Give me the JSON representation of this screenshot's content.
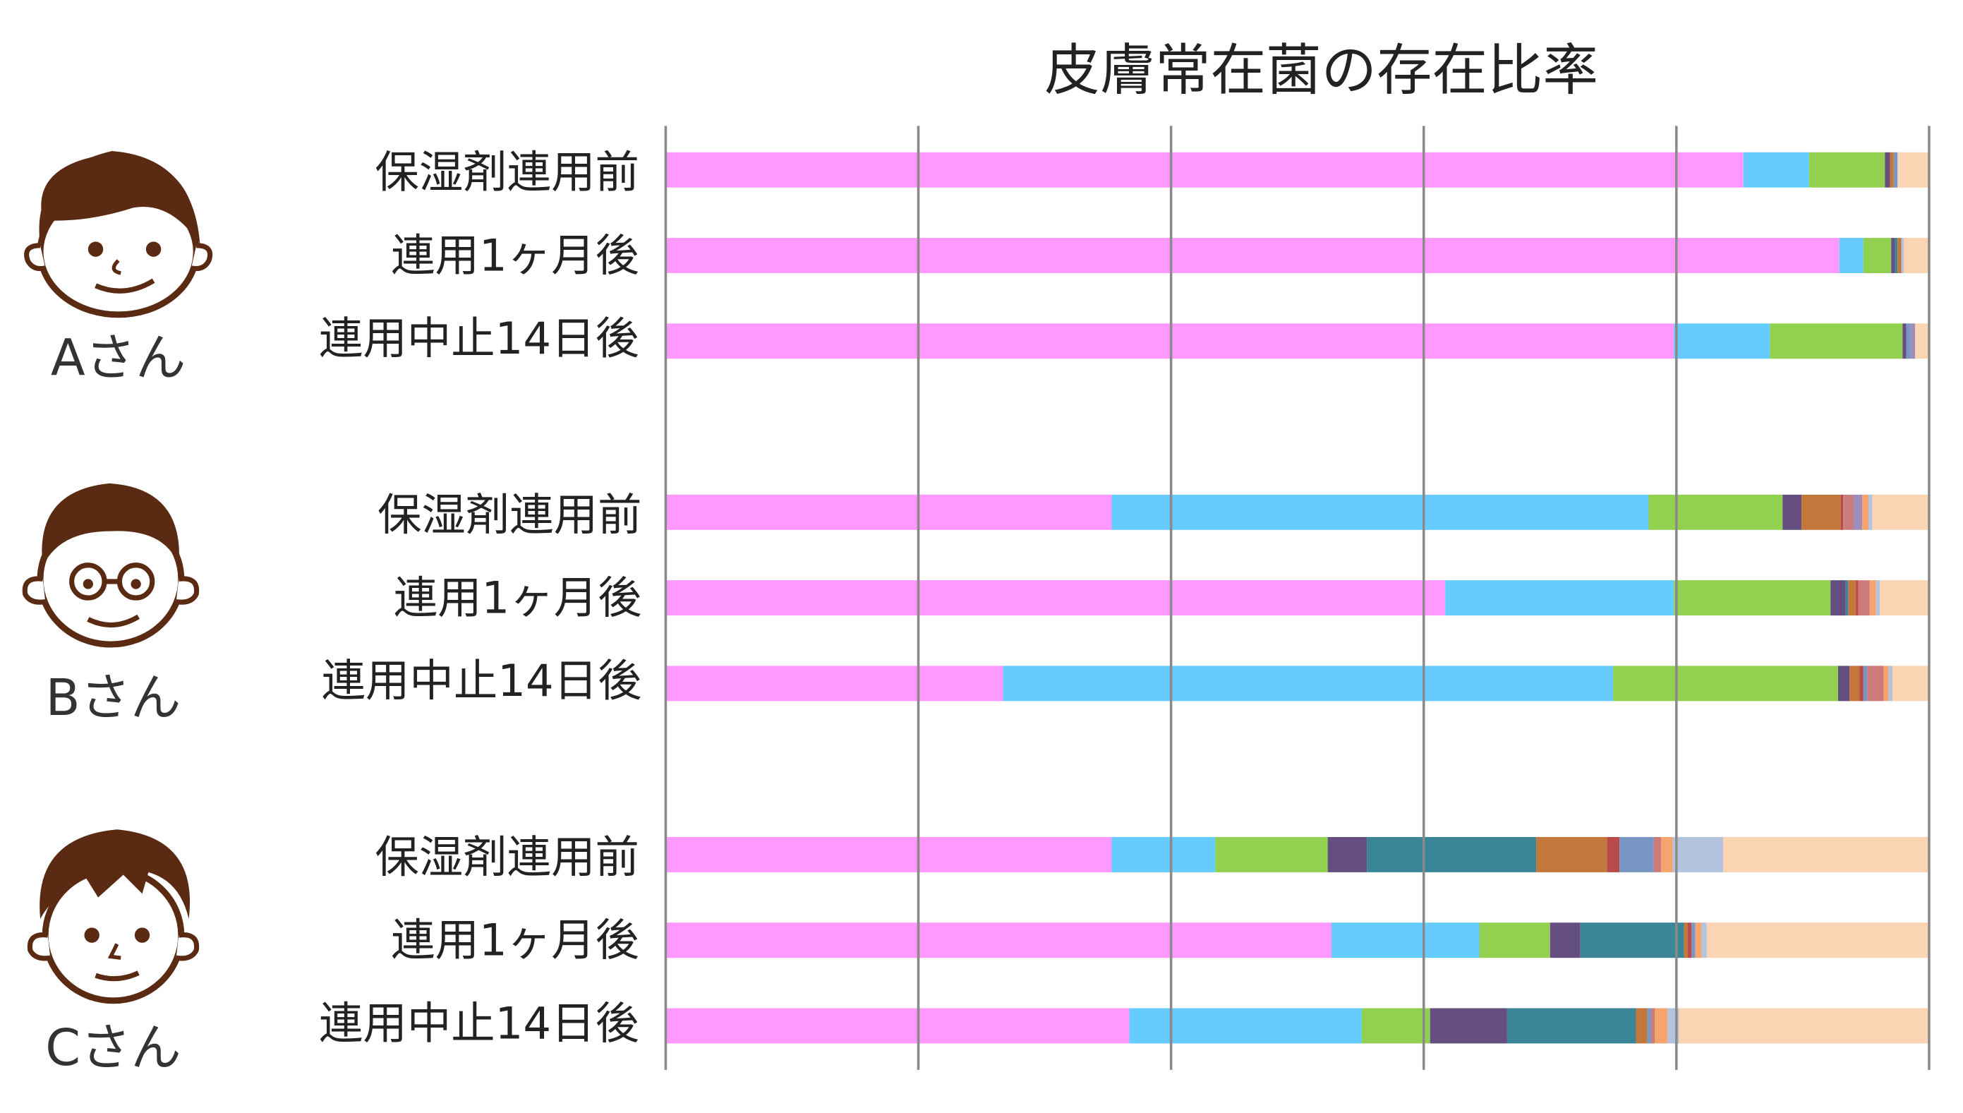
{
  "chart_data": {
    "type": "bar",
    "orientation": "horizontal",
    "stacked": true,
    "title": "皮膚常在菌の存在比率",
    "xlabel": "",
    "ylabel": "",
    "xlim": [
      0,
      100
    ],
    "unit": "%",
    "grid": true,
    "xticks": [
      0,
      20,
      40,
      60,
      80,
      100
    ],
    "legend": "none",
    "colors": [
      "#FF99FF",
      "#66CCFF",
      "#92D050",
      "#654E80",
      "#3A8598",
      "#C4773A",
      "#B84A4A",
      "#7896C4",
      "#CC7B7B",
      "#9E8CBB",
      "#F6A46E",
      "#B4C3DD",
      "#FBD4B4"
    ],
    "groups": [
      {
        "person": "Aさん",
        "rows": [
          {
            "label": "保湿剤連用前",
            "values": [
              85.3,
              5.2,
              6.0,
              0.4,
              0,
              0.3,
              0,
              0.3,
              0,
              0,
              0,
              0,
              2.5
            ]
          },
          {
            "label": "連用1ヶ月後",
            "values": [
              92.9,
              1.9,
              2.2,
              0.3,
              0.2,
              0.3,
              0,
              0,
              0,
              0,
              0,
              0.2,
              2.0
            ]
          },
          {
            "label": "連用中止14日後",
            "values": [
              79.8,
              7.6,
              10.5,
              0.3,
              0,
              0,
              0,
              0.3,
              0,
              0.4,
              0,
              0,
              1.1
            ]
          }
        ]
      },
      {
        "person": "Bさん",
        "rows": [
          {
            "label": "保湿剤連用前",
            "values": [
              35.3,
              42.5,
              10.6,
              1.5,
              0,
              3.1,
              0.2,
              0,
              0.8,
              0.7,
              0.5,
              0.3,
              4.5
            ]
          },
          {
            "label": "連用1ヶ月後",
            "values": [
              61.7,
              18.1,
              12.4,
              1.2,
              0.2,
              0.6,
              0.2,
              0,
              0.9,
              0,
              0.5,
              0.3,
              3.9
            ]
          },
          {
            "label": "連用中止14日後",
            "values": [
              26.7,
              48.3,
              17.8,
              0.9,
              0,
              0.8,
              0.3,
              0.3,
              1.3,
              0,
              0.4,
              0.3,
              2.9
            ]
          }
        ]
      },
      {
        "person": "Cさん",
        "rows": [
          {
            "label": "保湿剤連用前",
            "values": [
              35.3,
              8.2,
              8.9,
              3.1,
              13.4,
              5.6,
              1.0,
              2.7,
              0.6,
              0,
              0.9,
              4.0,
              16.3
            ]
          },
          {
            "label": "連用1ヶ月後",
            "values": [
              52.7,
              11.7,
              5.6,
              2.4,
              8.2,
              0.3,
              0.3,
              0.3,
              0,
              0,
              0.5,
              0.4,
              17.6
            ]
          },
          {
            "label": "連用中止14日後",
            "values": [
              36.7,
              18.4,
              5.4,
              6.1,
              10.2,
              0.9,
              0,
              0.3,
              0.3,
              0,
              1.0,
              0.9,
              19.8
            ]
          }
        ]
      }
    ]
  }
}
